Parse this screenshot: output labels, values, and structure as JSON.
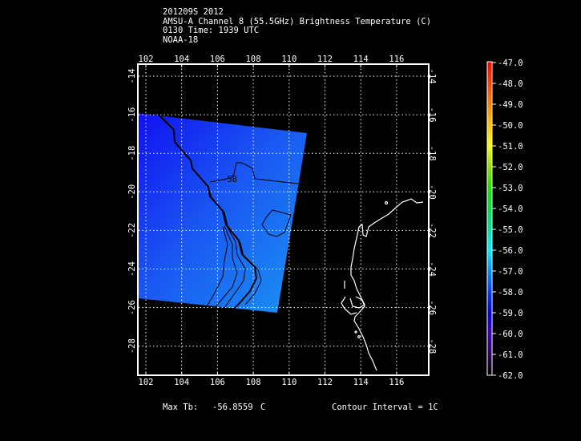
{
  "header": {
    "line1": "201209S 2012",
    "line2": "AMSU-A Channel 8 (55.5GHz) Brightness Temperature (C)",
    "line3": "0130 Time: 1939 UTC",
    "line4": "NOAA-18"
  },
  "map": {
    "lon_ticks": [
      "102",
      "104",
      "106",
      "108",
      "110",
      "112",
      "114",
      "116"
    ],
    "lat_ticks": [
      "-14",
      "-16",
      "-18",
      "-20",
      "-22",
      "-24",
      "-26",
      "-28"
    ],
    "contour_label": "-58",
    "colors": {
      "background": "#000000",
      "swath_dark": "#1010f0",
      "swath_light": "#1a90f2",
      "coastline": "#ffffff",
      "contour": "#000000",
      "grid": "#ffffff"
    }
  },
  "colorbar": {
    "labels": [
      "-47.0",
      "-48.0",
      "-49.0",
      "-50.0",
      "-51.0",
      "-52.0",
      "-53.0",
      "-54.0",
      "-55.0",
      "-56.0",
      "-57.0",
      "-58.0",
      "-59.0",
      "-60.0",
      "-61.0",
      "-62.0"
    ],
    "colors": [
      "#ff0000",
      "#ff4000",
      "#ff8000",
      "#ffc000",
      "#ffff00",
      "#90e000",
      "#20e000",
      "#00e040",
      "#00e0a0",
      "#00f0ff",
      "#0090ff",
      "#0040ff",
      "#0000e0",
      "#4000c0",
      "#300060",
      "#000000"
    ]
  },
  "footer": {
    "max_tb_label": "Max Tb:",
    "max_tb_value": "-56.8559",
    "max_tb_unit": "C",
    "contour_interval": "Contour Interval = 1C"
  }
}
